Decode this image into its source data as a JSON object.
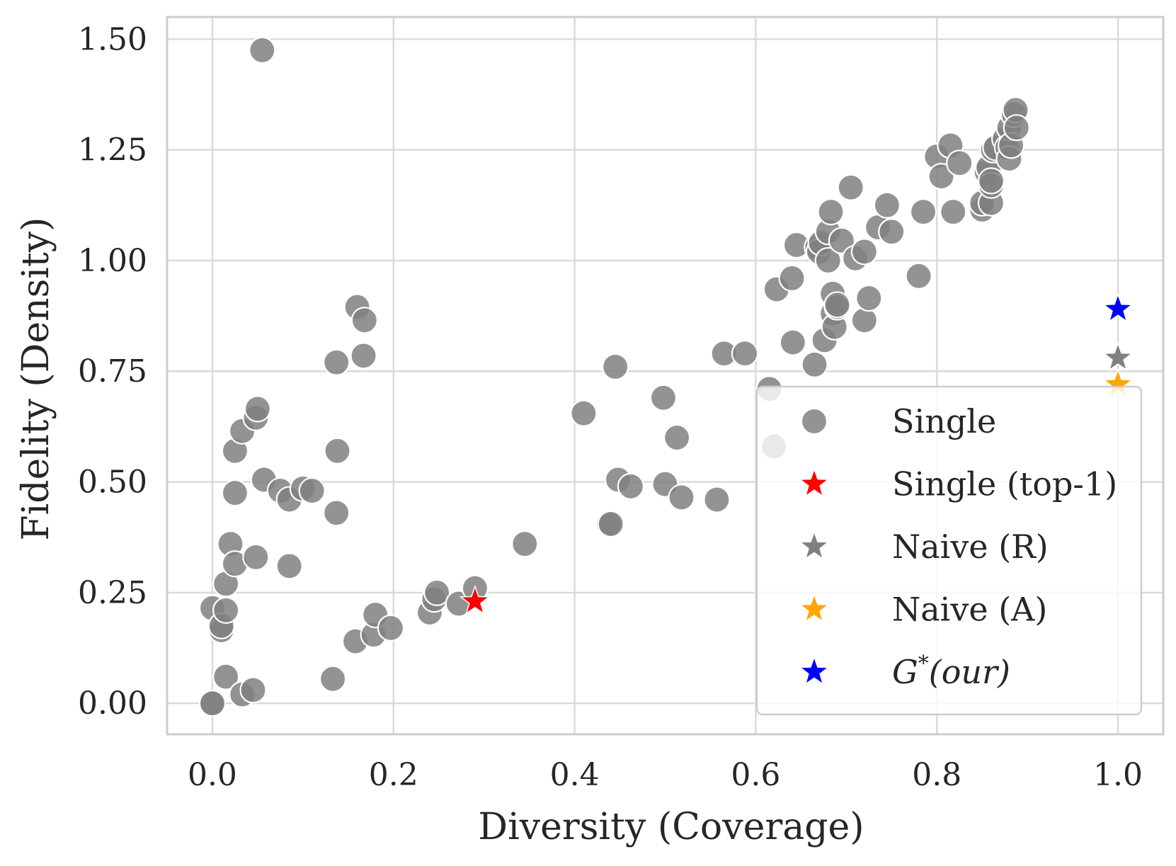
{
  "chart_data": {
    "type": "scatter",
    "title": "",
    "xlabel": "Diversity (Coverage)",
    "ylabel": "Fidelity (Density)",
    "xlim": [
      -0.05,
      1.05
    ],
    "ylim": [
      -0.07,
      1.55
    ],
    "xticks": [
      0.0,
      0.2,
      0.4,
      0.6,
      0.8,
      1.0
    ],
    "xtick_labels": [
      "0.0",
      "0.2",
      "0.4",
      "0.6",
      "0.8",
      "1.0"
    ],
    "yticks": [
      0.0,
      0.25,
      0.5,
      0.75,
      1.0,
      1.25,
      1.5
    ],
    "ytick_labels": [
      "0.00",
      "0.25",
      "0.50",
      "0.75",
      "1.00",
      "1.25",
      "1.50"
    ],
    "grid": true,
    "legend_position": "lower-right",
    "series": [
      {
        "name": "Single",
        "marker": "circle",
        "color": "#808080",
        "points": [
          [
            0.055,
            1.475
          ],
          [
            0.0,
            0.0
          ],
          [
            0.0,
            0.0
          ],
          [
            0.0,
            0.215
          ],
          [
            0.01,
            0.165
          ],
          [
            0.01,
            0.175
          ],
          [
            0.015,
            0.06
          ],
          [
            0.015,
            0.21
          ],
          [
            0.015,
            0.27
          ],
          [
            0.02,
            0.36
          ],
          [
            0.025,
            0.315
          ],
          [
            0.025,
            0.475
          ],
          [
            0.025,
            0.57
          ],
          [
            0.033,
            0.02
          ],
          [
            0.033,
            0.615
          ],
          [
            0.045,
            0.03
          ],
          [
            0.048,
            0.33
          ],
          [
            0.048,
            0.645
          ],
          [
            0.05,
            0.665
          ],
          [
            0.057,
            0.505
          ],
          [
            0.075,
            0.48
          ],
          [
            0.085,
            0.46
          ],
          [
            0.085,
            0.31
          ],
          [
            0.1,
            0.485
          ],
          [
            0.11,
            0.48
          ],
          [
            0.133,
            0.055
          ],
          [
            0.137,
            0.77
          ],
          [
            0.137,
            0.43
          ],
          [
            0.138,
            0.57
          ],
          [
            0.158,
            0.14
          ],
          [
            0.16,
            0.895
          ],
          [
            0.167,
            0.785
          ],
          [
            0.168,
            0.865
          ],
          [
            0.178,
            0.155
          ],
          [
            0.18,
            0.2
          ],
          [
            0.197,
            0.17
          ],
          [
            0.24,
            0.205
          ],
          [
            0.245,
            0.235
          ],
          [
            0.248,
            0.25
          ],
          [
            0.272,
            0.225
          ],
          [
            0.29,
            0.26
          ],
          [
            0.345,
            0.36
          ],
          [
            0.41,
            0.655
          ],
          [
            0.438,
            0.405
          ],
          [
            0.44,
            0.405
          ],
          [
            0.445,
            0.76
          ],
          [
            0.448,
            0.505
          ],
          [
            0.462,
            0.49
          ],
          [
            0.498,
            0.69
          ],
          [
            0.5,
            0.495
          ],
          [
            0.513,
            0.6
          ],
          [
            0.518,
            0.465
          ],
          [
            0.557,
            0.46
          ],
          [
            0.565,
            0.79
          ],
          [
            0.588,
            0.79
          ],
          [
            0.615,
            0.71
          ],
          [
            0.62,
            0.58
          ],
          [
            0.623,
            0.935
          ],
          [
            0.64,
            0.96
          ],
          [
            0.641,
            0.815
          ],
          [
            0.645,
            1.035
          ],
          [
            0.665,
            0.765
          ],
          [
            0.668,
            1.03
          ],
          [
            0.67,
            1.02
          ],
          [
            0.672,
            1.04
          ],
          [
            0.676,
            0.82
          ],
          [
            0.68,
            1.0
          ],
          [
            0.68,
            1.065
          ],
          [
            0.683,
            1.11
          ],
          [
            0.685,
            0.925
          ],
          [
            0.685,
            0.88
          ],
          [
            0.687,
            0.85
          ],
          [
            0.69,
            0.895
          ],
          [
            0.69,
            0.9
          ],
          [
            0.695,
            1.045
          ],
          [
            0.705,
            1.165
          ],
          [
            0.71,
            1.005
          ],
          [
            0.72,
            1.02
          ],
          [
            0.72,
            0.865
          ],
          [
            0.725,
            0.915
          ],
          [
            0.735,
            1.075
          ],
          [
            0.745,
            1.125
          ],
          [
            0.75,
            1.065
          ],
          [
            0.78,
            0.965
          ],
          [
            0.785,
            1.11
          ],
          [
            0.8,
            1.235
          ],
          [
            0.805,
            1.19
          ],
          [
            0.815,
            1.26
          ],
          [
            0.818,
            1.11
          ],
          [
            0.825,
            1.22
          ],
          [
            0.85,
            1.115
          ],
          [
            0.85,
            1.13
          ],
          [
            0.855,
            1.2
          ],
          [
            0.857,
            1.21
          ],
          [
            0.86,
            1.13
          ],
          [
            0.86,
            1.17
          ],
          [
            0.86,
            1.18
          ],
          [
            0.862,
            1.25
          ],
          [
            0.865,
            1.255
          ],
          [
            0.875,
            1.275
          ],
          [
            0.878,
            1.255
          ],
          [
            0.88,
            1.3
          ],
          [
            0.88,
            1.23
          ],
          [
            0.882,
            1.26
          ],
          [
            0.885,
            1.33
          ],
          [
            0.887,
            1.34
          ],
          [
            0.888,
            1.3
          ]
        ]
      },
      {
        "name": "Single (top-1)",
        "marker": "star",
        "color": "#ff0000",
        "points": [
          [
            0.29,
            0.23
          ]
        ]
      },
      {
        "name": "Naive (R)",
        "marker": "star",
        "color": "#808080",
        "points": [
          [
            1.0,
            0.78
          ]
        ]
      },
      {
        "name": "Naive (A)",
        "marker": "star",
        "color": "#ffa500",
        "points": [
          [
            1.0,
            0.72
          ]
        ]
      },
      {
        "name": "G*(our)",
        "marker": "star",
        "color": "#0000ff",
        "points": [
          [
            1.0,
            0.89
          ]
        ]
      }
    ],
    "legend": [
      {
        "label": "Single",
        "marker": "circle",
        "color": "#808080"
      },
      {
        "label": "Single (top-1)",
        "marker": "star",
        "color": "#ff0000"
      },
      {
        "label": "Naive (R)",
        "marker": "star",
        "color": "#808080"
      },
      {
        "label": "Naive (A)",
        "marker": "star",
        "color": "#ffa500"
      },
      {
        "label": "G*(our)",
        "label_main": "G",
        "label_sup": "*",
        "label_rest": "(our)",
        "marker": "star",
        "color": "#0000ff"
      }
    ]
  }
}
